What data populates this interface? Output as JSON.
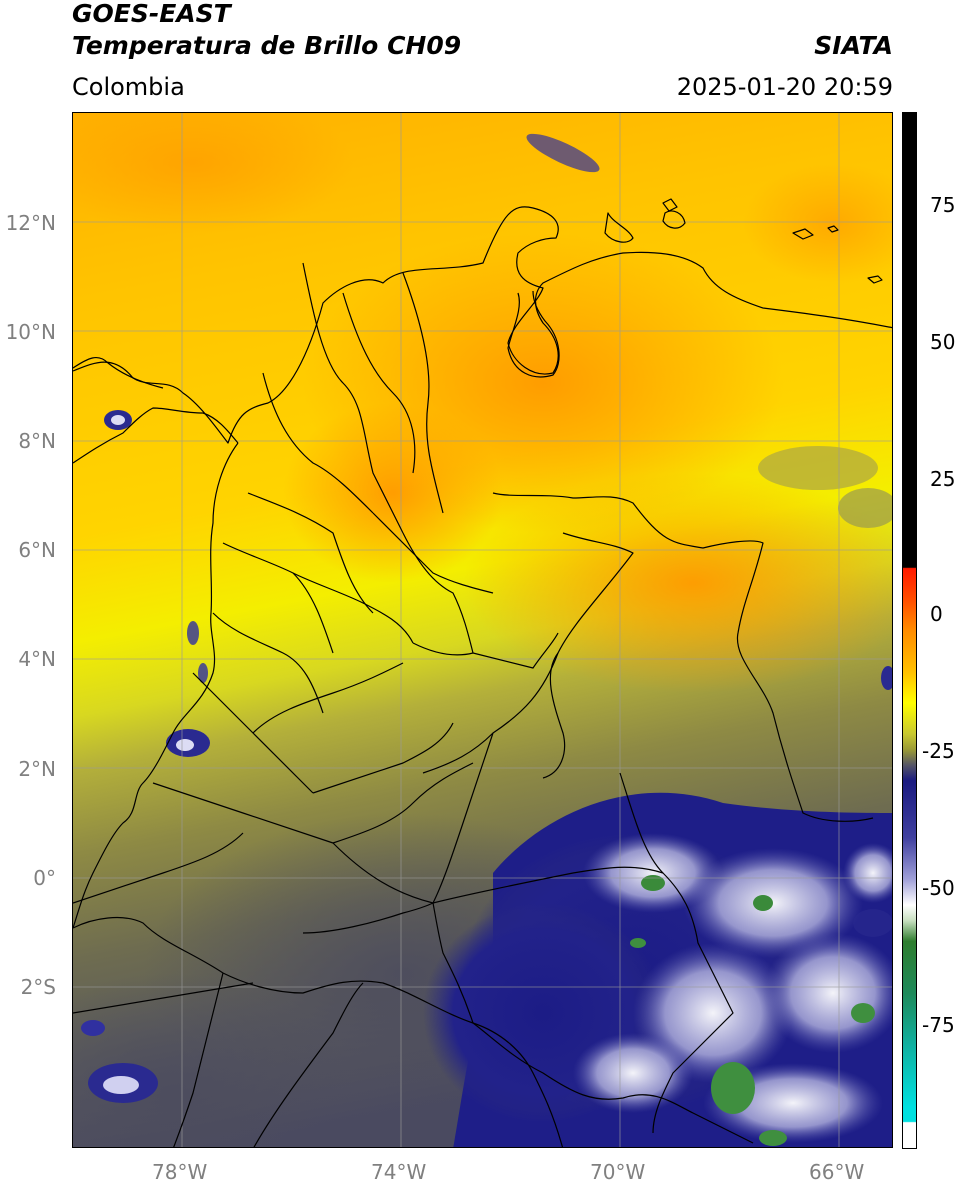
{
  "header": {
    "satellite": "GOES-EAST",
    "product": "Temperatura de Brillo CH09",
    "region": "Colombia",
    "agency": "SIATA",
    "datetime": "2025-01-20 20:59"
  },
  "map": {
    "lon_range": [
      -80,
      -65.0
    ],
    "lat_range": [
      -4.9,
      14.1
    ],
    "lat_labels": [
      "12°N",
      "10°N",
      "8°N",
      "6°N",
      "4°N",
      "2°N",
      "0°",
      "2°S"
    ],
    "lon_labels": [
      "78°W",
      "74°W",
      "70°W",
      "66°W"
    ],
    "gridlines": true
  },
  "colorbar": {
    "tick_labels": [
      "75",
      "50",
      "25",
      "0",
      "-25",
      "-50",
      "-75"
    ],
    "range": [
      -97,
      90
    ],
    "colors": {
      "top": "#000000",
      "red": "#ff1a00",
      "orange": "#ff8c00",
      "yellow": "#ffff00",
      "olive": "#9a9a35",
      "gray": "#555566",
      "navy": "#1a1a80",
      "white": "#ffffff",
      "green": "#2e7d2e",
      "cyan": "#00e0e0"
    }
  }
}
